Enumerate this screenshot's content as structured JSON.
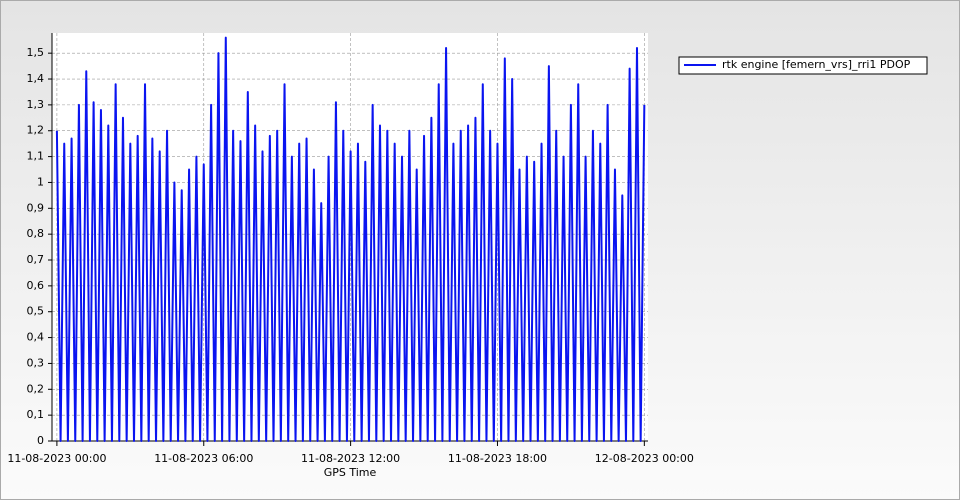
{
  "chart_data": {
    "type": "line",
    "xlabel": "GPS Time",
    "x": [
      0,
      0.15,
      0.3,
      0.45,
      0.6,
      0.75,
      0.9,
      1.05,
      1.2,
      1.35,
      1.5,
      1.65,
      1.8,
      1.95,
      2.1,
      2.25,
      2.4,
      2.55,
      2.7,
      2.85,
      3,
      3.15,
      3.3,
      3.45,
      3.6,
      3.75,
      3.9,
      4.05,
      4.2,
      4.35,
      4.5,
      4.65,
      4.8,
      4.95,
      5.1,
      5.25,
      5.4,
      5.55,
      5.7,
      5.85,
      6,
      6.15,
      6.3,
      6.45,
      6.6,
      6.75,
      6.9,
      7.05,
      7.2,
      7.35,
      7.5,
      7.65,
      7.8,
      7.95,
      8.1,
      8.25,
      8.4,
      8.55,
      8.7,
      8.85,
      9,
      9.15,
      9.3,
      9.45,
      9.6,
      9.75,
      9.9,
      10.05,
      10.2,
      10.35,
      10.5,
      10.65,
      10.8,
      10.95,
      11.1,
      11.25,
      11.4,
      11.55,
      11.7,
      11.85,
      12,
      12.15,
      12.3,
      12.45,
      12.6,
      12.75,
      12.9,
      13.05,
      13.2,
      13.35,
      13.5,
      13.65,
      13.8,
      13.95,
      14.1,
      14.25,
      14.4,
      14.55,
      14.7,
      14.85,
      15,
      15.15,
      15.3,
      15.45,
      15.6,
      15.75,
      15.9,
      16.05,
      16.2,
      16.35,
      16.5,
      16.65,
      16.8,
      16.95,
      17.1,
      17.25,
      17.4,
      17.55,
      17.7,
      17.85,
      18,
      18.15,
      18.3,
      18.45,
      18.6,
      18.75,
      18.9,
      19.05,
      19.2,
      19.35,
      19.5,
      19.65,
      19.8,
      19.95,
      20.1,
      20.25,
      20.4,
      20.55,
      20.7,
      20.85,
      21,
      21.15,
      21.3,
      21.45,
      21.6,
      21.75,
      21.9,
      22.05,
      22.2,
      22.35,
      22.5,
      22.65,
      22.8,
      22.95,
      23.1,
      23.25,
      23.4,
      23.55,
      23.7,
      23.85,
      24
    ],
    "series": [
      {
        "name": "rtk engine [femern_vrs]_rri1 PDOP",
        "color": "#0a14f0",
        "values": [
          1.2,
          0,
          1.15,
          0,
          1.17,
          0,
          1.3,
          0,
          1.43,
          0,
          1.31,
          0,
          1.28,
          0,
          1.22,
          0,
          1.38,
          0,
          1.25,
          0,
          1.15,
          0,
          1.18,
          0,
          1.38,
          0,
          1.17,
          0,
          1.12,
          0,
          1.2,
          0,
          1.0,
          0,
          0.97,
          0,
          1.05,
          0,
          1.1,
          0,
          1.07,
          0,
          1.3,
          0,
          1.5,
          0,
          1.56,
          0,
          1.2,
          0,
          1.16,
          0,
          1.35,
          0,
          1.22,
          0,
          1.12,
          0,
          1.18,
          0,
          1.2,
          0,
          1.38,
          0,
          1.1,
          0,
          1.15,
          0,
          1.17,
          0,
          1.05,
          0,
          0.92,
          0,
          1.1,
          0,
          1.31,
          0,
          1.2,
          0,
          1.12,
          0,
          1.15,
          0,
          1.08,
          0,
          1.3,
          0,
          1.22,
          0,
          1.2,
          0,
          1.15,
          0,
          1.1,
          0,
          1.2,
          0,
          1.05,
          0,
          1.18,
          0,
          1.25,
          0,
          1.38,
          0,
          1.52,
          0,
          1.15,
          0,
          1.2,
          0,
          1.22,
          0,
          1.25,
          0,
          1.38,
          0,
          1.2,
          0,
          1.15,
          0,
          1.48,
          0,
          1.4,
          0,
          1.05,
          0,
          1.1,
          0,
          1.08,
          0,
          1.15,
          0,
          1.45,
          0,
          1.2,
          0,
          1.1,
          0,
          1.3,
          0,
          1.38,
          0,
          1.1,
          0,
          1.2,
          0,
          1.15,
          0,
          1.3,
          0,
          1.05,
          0,
          0.95,
          0,
          1.44,
          0,
          1.52,
          0,
          1.3
        ]
      }
    ],
    "xlim": [
      -0.2,
      24.15
    ],
    "ylim": [
      0,
      1.578
    ],
    "xticks": [
      {
        "value": 0,
        "label": "11-08-2023 00:00"
      },
      {
        "value": 6,
        "label": "11-08-2023 06:00"
      },
      {
        "value": 12,
        "label": "11-08-2023 12:00"
      },
      {
        "value": 18,
        "label": "11-08-2023 18:00"
      },
      {
        "value": 24,
        "label": "12-08-2023 00:00"
      }
    ],
    "yticks": [
      0,
      {
        "value": 0.1,
        "label": "0,1"
      },
      {
        "value": 0.2,
        "label": "0,2"
      },
      {
        "value": 0.3,
        "label": "0,3"
      },
      {
        "value": 0.4,
        "label": "0,4"
      },
      {
        "value": 0.5,
        "label": "0,5"
      },
      {
        "value": 0.6,
        "label": "0,6"
      },
      {
        "value": 0.7,
        "label": "0,7"
      },
      {
        "value": 0.8,
        "label": "0,8"
      },
      {
        "value": 0.9,
        "label": "0,9"
      },
      1,
      {
        "value": 1.1,
        "label": "1,1"
      },
      {
        "value": 1.2,
        "label": "1,2"
      },
      {
        "value": 1.3,
        "label": "1,3"
      },
      {
        "value": 1.4,
        "label": "1,4"
      },
      {
        "value": 1.5,
        "label": "1,5"
      }
    ],
    "grid": true,
    "legend": "right"
  }
}
